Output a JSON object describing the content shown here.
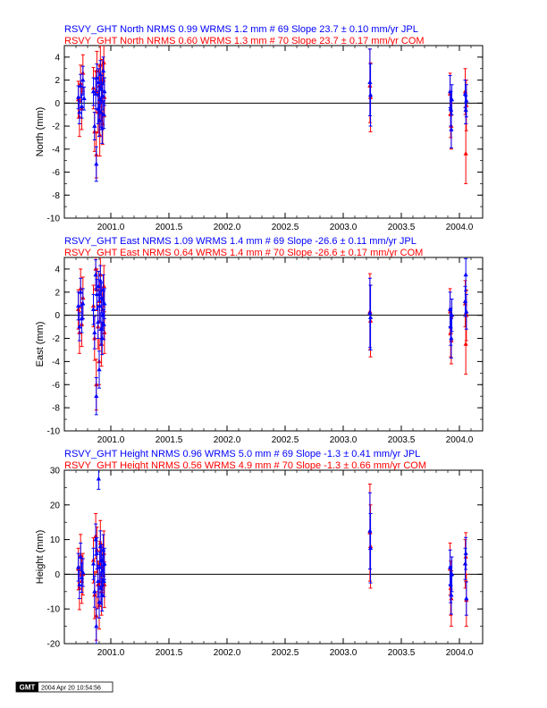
{
  "colors": {
    "jpl": "#0000ff",
    "com": "#ff0000",
    "axis": "#000000"
  },
  "chart_data": [
    {
      "type": "scatter",
      "title_jpl": "RSVY_GHT North NRMS 0.99 WRMS  1.2 mm # 69 Slope   23.7 ±  0.10 mm/yr JPL",
      "title_com": "RSVY_GHT North NRMS 0.60 WRMS  1.3 mm # 70 Slope   23.7 ±  0.17 mm/yr COM",
      "ylabel": "North (mm)",
      "xlim": [
        2000.6,
        2004.2
      ],
      "ylim": [
        -10,
        5
      ],
      "xticks": [
        2001.0,
        2001.5,
        2002.0,
        2002.5,
        2003.0,
        2003.5,
        2004.0
      ],
      "xtick_labels": [
        "2001.0",
        "2001.5",
        "2002.0",
        "2002.5",
        "2003.0",
        "2003.5",
        "2004.0"
      ],
      "yticks": [
        -10,
        -8,
        -6,
        -4,
        -2,
        0,
        2,
        4
      ],
      "ytick_labels": [
        "-10",
        "-8",
        "-6",
        "-4",
        "-2",
        "0",
        "2",
        "4"
      ],
      "series": [
        {
          "name": "JPL",
          "points": [
            [
              2000.72,
              0.5,
              1.0
            ],
            [
              2000.73,
              -0.8,
              1.0
            ],
            [
              2000.74,
              1.5,
              1.0
            ],
            [
              2000.75,
              -0.3,
              1.0
            ],
            [
              2000.76,
              2.0,
              1.2
            ],
            [
              2000.77,
              0.4,
              1.0
            ],
            [
              2000.85,
              1.0,
              1.2
            ],
            [
              2000.86,
              -2.0,
              1.2
            ],
            [
              2000.87,
              0.8,
              1.3
            ],
            [
              2000.875,
              -5.3,
              1.5
            ],
            [
              2000.88,
              2.2,
              1.2
            ],
            [
              2000.89,
              -0.5,
              1.3
            ],
            [
              2000.895,
              1.8,
              1.2
            ],
            [
              2000.9,
              -1.5,
              1.4
            ],
            [
              2000.905,
              0.3,
              1.2
            ],
            [
              2000.91,
              2.5,
              1.2
            ],
            [
              2000.915,
              -0.8,
              1.3
            ],
            [
              2000.92,
              1.2,
              1.2
            ],
            [
              2000.925,
              -2.2,
              1.3
            ],
            [
              2000.93,
              0.6,
              1.2
            ],
            [
              2000.935,
              2.8,
              1.2
            ],
            [
              2000.94,
              -1.0,
              1.2
            ],
            [
              2000.945,
              1.0,
              1.2
            ],
            [
              2003.23,
              1.8,
              2.9
            ],
            [
              2003.235,
              0.7,
              2.7
            ],
            [
              2003.92,
              1.0,
              1.4
            ],
            [
              2003.925,
              -0.5,
              1.5
            ],
            [
              2003.93,
              -2.3,
              1.6
            ],
            [
              2003.935,
              0.3,
              1.3
            ],
            [
              2004.05,
              0.8,
              1.2
            ],
            [
              2004.055,
              -0.6,
              1.2
            ],
            [
              2004.06,
              0.2,
              1.4
            ]
          ]
        },
        {
          "name": "COM",
          "points": [
            [
              2000.72,
              0.3,
              1.6
            ],
            [
              2000.73,
              -1.2,
              1.7
            ],
            [
              2000.74,
              1.7,
              1.6
            ],
            [
              2000.75,
              -0.5,
              1.8
            ],
            [
              2000.76,
              2.6,
              1.6
            ],
            [
              2000.85,
              1.3,
              1.8
            ],
            [
              2000.86,
              -2.5,
              1.7
            ],
            [
              2000.87,
              1.0,
              1.8
            ],
            [
              2000.875,
              -4.5,
              2.0
            ],
            [
              2000.88,
              2.8,
              1.7
            ],
            [
              2000.89,
              -0.8,
              1.8
            ],
            [
              2000.9,
              1.5,
              1.8
            ],
            [
              2000.905,
              -2.8,
              1.8
            ],
            [
              2000.91,
              3.3,
              1.7
            ],
            [
              2000.92,
              0.2,
              1.8
            ],
            [
              2000.925,
              2.0,
              1.8
            ],
            [
              2000.93,
              -1.8,
              1.8
            ],
            [
              2000.94,
              3.5,
              1.6
            ],
            [
              2000.945,
              0.5,
              1.7
            ],
            [
              2003.23,
              1.5,
              3.2
            ],
            [
              2003.235,
              0.5,
              3.0
            ],
            [
              2003.92,
              0.8,
              1.8
            ],
            [
              2003.925,
              -1.0,
              2.0
            ],
            [
              2003.93,
              -2.0,
              2.0
            ],
            [
              2004.05,
              1.0,
              2.0
            ],
            [
              2004.055,
              -4.4,
              2.6
            ],
            [
              2004.06,
              -0.2,
              2.2
            ]
          ]
        }
      ]
    },
    {
      "type": "scatter",
      "title_jpl": "RSVY_GHT East NRMS 1.09 WRMS  1.4 mm # 69 Slope  -26.6 ±  0.11 mm/yr JPL",
      "title_com": "RSVY_GHT East NRMS 0.64 WRMS  1.4 mm # 70 Slope  -26.6 ±  0.17 mm/yr COM",
      "ylabel": "East (mm)",
      "xlim": [
        2000.6,
        2004.2
      ],
      "ylim": [
        -10,
        5
      ],
      "xticks": [
        2001.0,
        2001.5,
        2002.0,
        2002.5,
        2003.0,
        2003.5,
        2004.0
      ],
      "xtick_labels": [
        "2001.0",
        "2001.5",
        "2002.0",
        "2002.5",
        "2003.0",
        "2003.5",
        "2004.0"
      ],
      "yticks": [
        -10,
        -8,
        -6,
        -4,
        -2,
        0,
        2,
        4
      ],
      "ytick_labels": [
        "-10",
        "-8",
        "-6",
        "-4",
        "-2",
        "0",
        "2",
        "4"
      ],
      "series": [
        {
          "name": "JPL",
          "points": [
            [
              2000.72,
              0.8,
              1.2
            ],
            [
              2000.73,
              -1.0,
              1.2
            ],
            [
              2000.74,
              2.0,
              1.2
            ],
            [
              2000.75,
              -0.3,
              1.2
            ],
            [
              2000.76,
              1.0,
              1.3
            ],
            [
              2000.85,
              0.5,
              1.3
            ],
            [
              2000.86,
              -1.5,
              1.4
            ],
            [
              2000.87,
              3.5,
              1.3
            ],
            [
              2000.875,
              -7.0,
              1.6
            ],
            [
              2000.88,
              1.8,
              1.3
            ],
            [
              2000.89,
              -0.6,
              1.4
            ],
            [
              2000.895,
              2.5,
              1.3
            ],
            [
              2000.9,
              -4.7,
              1.6
            ],
            [
              2000.905,
              0.8,
              1.3
            ],
            [
              2000.91,
              3.0,
              1.3
            ],
            [
              2000.915,
              -1.2,
              1.4
            ],
            [
              2000.92,
              1.5,
              1.3
            ],
            [
              2000.925,
              -2.0,
              1.4
            ],
            [
              2000.93,
              0.0,
              1.3
            ],
            [
              2000.935,
              2.2,
              1.3
            ],
            [
              2000.94,
              -0.8,
              1.3
            ],
            [
              2000.945,
              1.0,
              1.3
            ],
            [
              2003.23,
              0.2,
              3.0
            ],
            [
              2003.235,
              -0.2,
              2.8
            ],
            [
              2003.92,
              0.5,
              1.5
            ],
            [
              2003.925,
              -1.0,
              1.6
            ],
            [
              2003.93,
              -2.0,
              1.7
            ],
            [
              2003.935,
              0.0,
              1.4
            ],
            [
              2004.05,
              1.2,
              1.3
            ],
            [
              2004.055,
              3.5,
              1.4
            ],
            [
              2004.06,
              0.3,
              1.5
            ]
          ]
        },
        {
          "name": "COM",
          "points": [
            [
              2000.72,
              0.5,
              1.7
            ],
            [
              2000.73,
              -1.5,
              1.8
            ],
            [
              2000.74,
              2.3,
              1.7
            ],
            [
              2000.75,
              -0.8,
              1.9
            ],
            [
              2000.76,
              1.5,
              1.8
            ],
            [
              2000.85,
              0.8,
              1.8
            ],
            [
              2000.86,
              -2.0,
              1.9
            ],
            [
              2000.87,
              4.0,
              1.7
            ],
            [
              2000.875,
              -6.0,
              2.2
            ],
            [
              2000.88,
              2.2,
              1.8
            ],
            [
              2000.89,
              -1.0,
              1.9
            ],
            [
              2000.9,
              -4.0,
              2.0
            ],
            [
              2000.905,
              1.2,
              1.8
            ],
            [
              2000.91,
              3.5,
              1.7
            ],
            [
              2000.92,
              -2.5,
              1.9
            ],
            [
              2000.93,
              0.5,
              1.8
            ],
            [
              2000.94,
              2.5,
              1.8
            ],
            [
              2000.945,
              -1.5,
              1.8
            ],
            [
              2003.23,
              0.3,
              3.3
            ],
            [
              2003.235,
              -0.5,
              3.1
            ],
            [
              2003.92,
              0.3,
              2.0
            ],
            [
              2003.925,
              -1.5,
              2.1
            ],
            [
              2003.93,
              -2.2,
              2.0
            ],
            [
              2004.05,
              1.0,
              2.0
            ],
            [
              2004.055,
              -2.5,
              2.6
            ],
            [
              2004.06,
              0.0,
              2.2
            ]
          ]
        }
      ]
    },
    {
      "type": "scatter",
      "title_jpl": "RSVY_GHT Height NRMS 0.96 WRMS  5.0 mm # 69 Slope   -1.3 ±  0.41 mm/yr JPL",
      "title_com": "RSVY_GHT Height NRMS 0.56 WRMS  4.9 mm # 70 Slope   -1.3 ±  0.66 mm/yr COM",
      "ylabel": "Height (mm)",
      "xlim": [
        2000.6,
        2004.2
      ],
      "ylim": [
        -20,
        30
      ],
      "xticks": [
        2001.0,
        2001.5,
        2002.0,
        2002.5,
        2003.0,
        2003.5,
        2004.0
      ],
      "xtick_labels": [
        "2001.0",
        "2001.5",
        "2002.0",
        "2002.5",
        "2003.0",
        "2003.5",
        "2004.0"
      ],
      "yticks": [
        -20,
        -10,
        0,
        10,
        20,
        30
      ],
      "ytick_labels": [
        "-20",
        "-10",
        "0",
        "10",
        "20",
        "30"
      ],
      "series": [
        {
          "name": "JPL",
          "points": [
            [
              2000.72,
              2.0,
              4.0
            ],
            [
              2000.73,
              -3.0,
              4.0
            ],
            [
              2000.74,
              5.0,
              4.0
            ],
            [
              2000.75,
              -1.0,
              4.2
            ],
            [
              2000.76,
              0.5,
              4.0
            ],
            [
              2000.85,
              3.0,
              4.5
            ],
            [
              2000.86,
              -5.0,
              4.5
            ],
            [
              2000.87,
              10.0,
              4.5
            ],
            [
              2000.875,
              -15.0,
              5.0
            ],
            [
              2000.88,
              6.0,
              4.5
            ],
            [
              2000.89,
              -2.0,
              4.6
            ],
            [
              2000.895,
              27.5,
              3.0
            ],
            [
              2000.9,
              -8.0,
              4.6
            ],
            [
              2000.905,
              2.0,
              4.4
            ],
            [
              2000.91,
              8.0,
              4.5
            ],
            [
              2000.915,
              -4.0,
              4.6
            ],
            [
              2000.92,
              4.0,
              4.5
            ],
            [
              2000.925,
              -6.0,
              4.6
            ],
            [
              2000.93,
              1.0,
              4.5
            ],
            [
              2000.935,
              7.0,
              4.4
            ],
            [
              2000.94,
              -2.0,
              4.5
            ],
            [
              2000.945,
              3.0,
              4.5
            ],
            [
              2003.23,
              12.5,
              11.0
            ],
            [
              2003.235,
              7.5,
              10.0
            ],
            [
              2003.92,
              2.0,
              5.0
            ],
            [
              2003.925,
              -3.0,
              5.2
            ],
            [
              2003.93,
              -6.0,
              5.5
            ],
            [
              2003.935,
              0.0,
              5.0
            ],
            [
              2004.05,
              3.0,
              4.5
            ],
            [
              2004.055,
              6.0,
              4.6
            ],
            [
              2004.06,
              -7.0,
              4.8
            ]
          ]
        },
        {
          "name": "COM",
          "points": [
            [
              2000.72,
              1.5,
              6.0
            ],
            [
              2000.73,
              -4.0,
              6.2
            ],
            [
              2000.74,
              5.5,
              6.0
            ],
            [
              2000.75,
              -2.0,
              6.4
            ],
            [
              2000.76,
              0.0,
              6.0
            ],
            [
              2000.85,
              4.0,
              6.5
            ],
            [
              2000.86,
              -6.0,
              6.8
            ],
            [
              2000.87,
              11.0,
              6.5
            ],
            [
              2000.875,
              -12.0,
              7.0
            ],
            [
              2000.88,
              7.0,
              6.6
            ],
            [
              2000.89,
              -3.0,
              6.8
            ],
            [
              2000.9,
              -9.0,
              6.8
            ],
            [
              2000.905,
              3.0,
              6.5
            ],
            [
              2000.91,
              9.0,
              6.5
            ],
            [
              2000.92,
              -5.0,
              6.8
            ],
            [
              2000.93,
              2.0,
              6.6
            ],
            [
              2000.94,
              6.0,
              6.5
            ],
            [
              2000.945,
              -3.0,
              6.6
            ],
            [
              2003.23,
              12.0,
              14.0
            ],
            [
              2003.235,
              8.0,
              12.0
            ],
            [
              2003.92,
              1.5,
              7.5
            ],
            [
              2003.925,
              -4.0,
              7.8
            ],
            [
              2003.93,
              -7.0,
              8.0
            ],
            [
              2004.05,
              3.0,
              7.0
            ],
            [
              2004.055,
              5.0,
              7.0
            ],
            [
              2004.06,
              -7.5,
              7.5
            ]
          ]
        }
      ]
    }
  ],
  "footer": {
    "logo": "GMT",
    "timestamp": "2004 Apr 20 10:54:56"
  }
}
